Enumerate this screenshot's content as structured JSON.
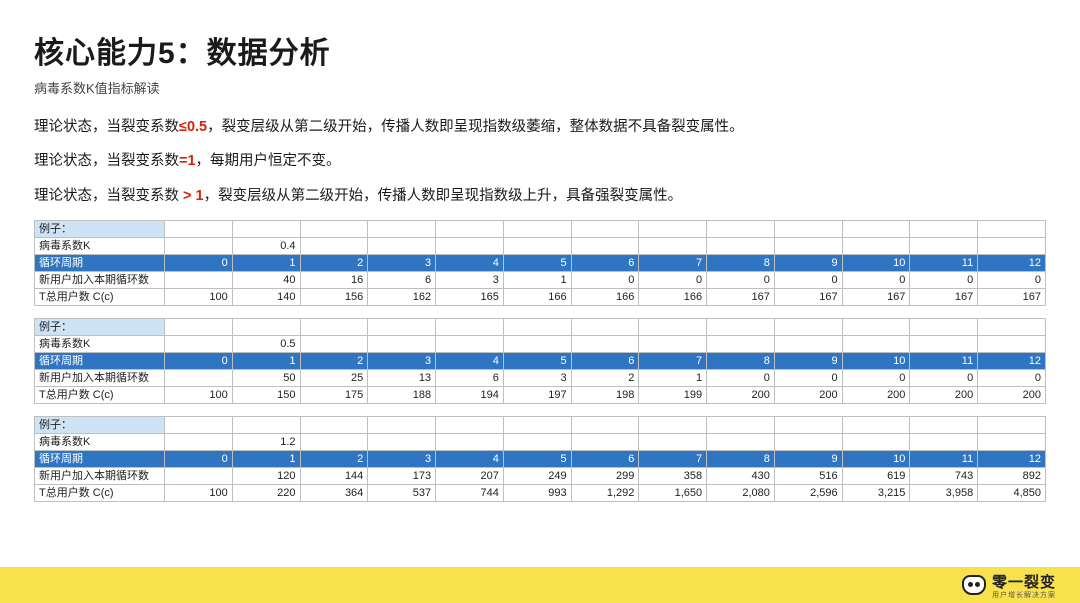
{
  "title": "核心能力5：数据分析",
  "subtitle": "病毒系数K值指标解读",
  "statements": [
    {
      "pre": "理论状态，当裂变系数",
      "hl": "≤0.5",
      "post": "，裂变层级从第二级开始，传播人数即呈现指数级萎缩，整体数据不具备裂变属性。"
    },
    {
      "pre": "理论状态，当裂变系数",
      "hl": "=1",
      "post": "，每期用户恒定不变。"
    },
    {
      "pre": "理论状态，当裂变系数",
      "hl": " > 1",
      "post": "，裂变层级从第二级开始，传播人数即呈现指数级上升，具备强裂变属性。"
    }
  ],
  "row_labels": {
    "example": "例子：",
    "k": "病毒系数K",
    "cycle": "循环周期",
    "new_users": "新用户加入本期循环数",
    "total": "T总用户数 C(c)"
  },
  "cycles": [
    "0",
    "1",
    "2",
    "3",
    "4",
    "5",
    "6",
    "7",
    "8",
    "9",
    "10",
    "11",
    "12"
  ],
  "tables": [
    {
      "k": "0.4",
      "new_users": [
        "",
        "40",
        "16",
        "6",
        "3",
        "1",
        "0",
        "0",
        "0",
        "0",
        "0",
        "0",
        "0"
      ],
      "total": [
        "100",
        "140",
        "156",
        "162",
        "165",
        "166",
        "166",
        "166",
        "167",
        "167",
        "167",
        "167",
        "167"
      ]
    },
    {
      "k": "0.5",
      "new_users": [
        "",
        "50",
        "25",
        "13",
        "6",
        "3",
        "2",
        "1",
        "0",
        "0",
        "0",
        "0",
        "0"
      ],
      "total": [
        "100",
        "150",
        "175",
        "188",
        "194",
        "197",
        "198",
        "199",
        "200",
        "200",
        "200",
        "200",
        "200"
      ]
    },
    {
      "k": "1.2",
      "new_users": [
        "",
        "120",
        "144",
        "173",
        "207",
        "249",
        "299",
        "358",
        "430",
        "516",
        "619",
        "743",
        "892"
      ],
      "total": [
        "100",
        "220",
        "364",
        "537",
        "744",
        "993",
        "1,292",
        "1,650",
        "2,080",
        "2,596",
        "3,215",
        "3,958",
        "4,850"
      ]
    }
  ],
  "styling": {
    "header_blue": "#2f75c2",
    "light_blue": "#cfe3f7",
    "border": "#bfbfbf",
    "footer_bg": "#f7e14d",
    "red": "#d4220d",
    "text": "#1a1a1a",
    "font_size_title": 30,
    "font_size_body": 14.5,
    "font_size_table": 11
  },
  "logo": {
    "name": "零一裂变",
    "tag": "用户增长解决方案"
  }
}
